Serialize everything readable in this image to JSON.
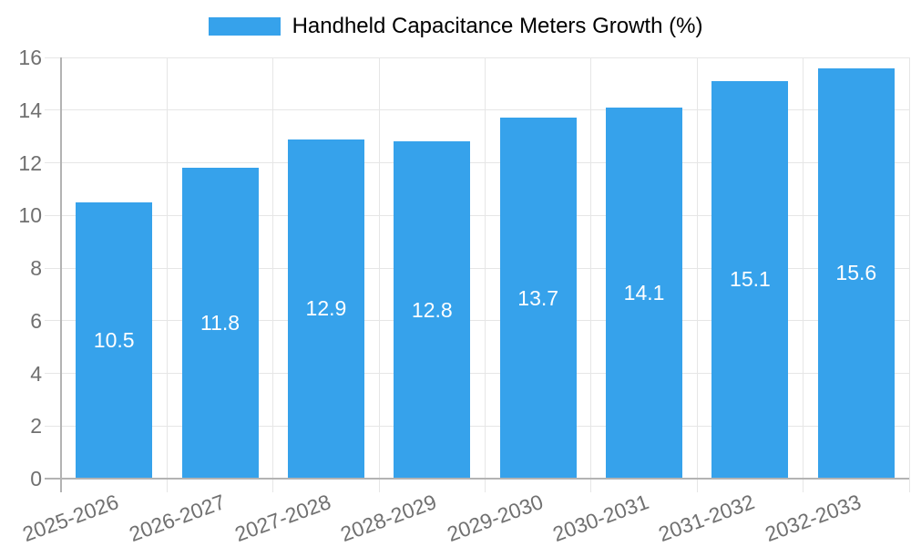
{
  "chart_data": {
    "type": "bar",
    "title": "Handheld Capacitance Meters Growth (%)",
    "legend_position": "top",
    "categories": [
      "2025-2026",
      "2026-2027",
      "2027-2028",
      "2028-2029",
      "2029-2030",
      "2030-2031",
      "2031-2032",
      "2032-2033"
    ],
    "series": [
      {
        "name": "Handheld Capacitance Meters Growth (%)",
        "values": [
          10.5,
          11.8,
          12.9,
          12.8,
          13.7,
          14.1,
          15.1,
          15.6
        ]
      }
    ],
    "value_labels": [
      "10.5",
      "11.8",
      "12.9",
      "12.8",
      "13.7",
      "14.1",
      "15.1",
      "15.6"
    ],
    "xlabel": "",
    "ylabel": "",
    "ylim": [
      0,
      16
    ],
    "yticks": [
      0,
      2,
      4,
      6,
      8,
      10,
      12,
      14,
      16
    ],
    "grid": true,
    "x_label_rotation_deg": -20,
    "colors": {
      "bar": "#36A2EB",
      "value_label": "#FFFFFF",
      "axis_text": "#707070",
      "grid_line": "#E6E6E6",
      "axis_line": "#B3B3B3",
      "background": "#FFFFFF"
    }
  }
}
